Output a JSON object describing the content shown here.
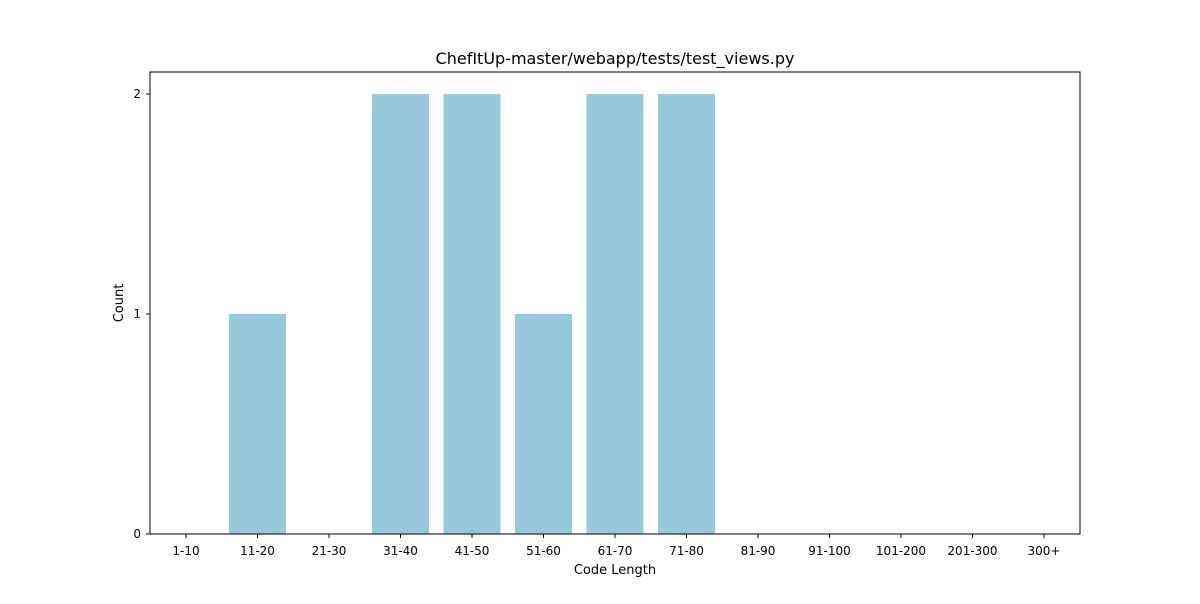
{
  "chart_data": {
    "type": "bar",
    "title": "ChefItUp-master/webapp/tests/test_views.py",
    "xlabel": "Code Length",
    "ylabel": "Count",
    "categories": [
      "1-10",
      "11-20",
      "21-30",
      "31-40",
      "41-50",
      "51-60",
      "61-70",
      "71-80",
      "81-90",
      "91-100",
      "101-200",
      "201-300",
      "300+"
    ],
    "values": [
      0,
      1,
      0,
      2,
      2,
      1,
      2,
      2,
      0,
      0,
      0,
      0,
      0
    ],
    "yticks": [
      0,
      1,
      2
    ],
    "ylim": [
      0,
      2.1
    ],
    "grid": false,
    "bar_color": "#96c9dc"
  }
}
